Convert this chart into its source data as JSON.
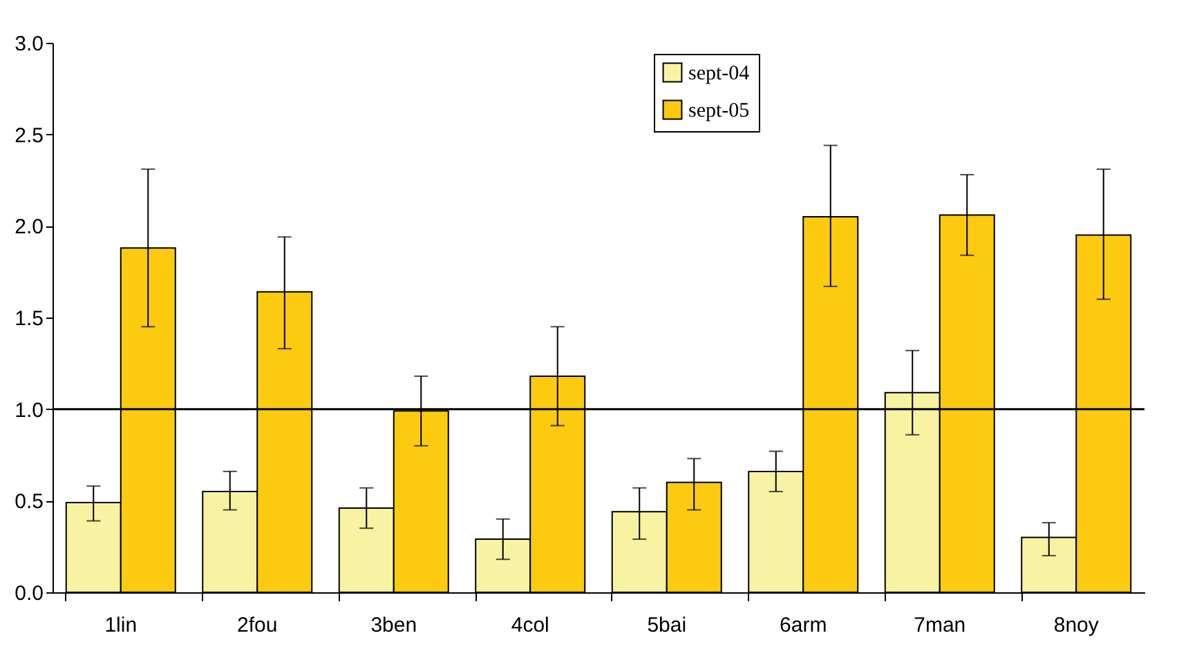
{
  "chart_data": {
    "type": "bar",
    "categories": [
      "1lin",
      "2fou",
      "3ben",
      "4col",
      "5bai",
      "6arm",
      "7man",
      "8noy"
    ],
    "series": [
      {
        "name": "sept-04",
        "color": "#f7f3a3",
        "values": [
          0.49,
          0.55,
          0.46,
          0.29,
          0.44,
          0.66,
          1.09,
          0.3
        ],
        "errors": [
          [
            0.39,
            0.58
          ],
          [
            0.45,
            0.66
          ],
          [
            0.35,
            0.57
          ],
          [
            0.18,
            0.4
          ],
          [
            0.29,
            0.57
          ],
          [
            0.55,
            0.77
          ],
          [
            0.86,
            1.32
          ],
          [
            0.2,
            0.38
          ]
        ]
      },
      {
        "name": "sept-05",
        "color": "#fccb0f",
        "values": [
          1.88,
          1.64,
          0.99,
          1.18,
          0.6,
          2.05,
          2.06,
          1.95
        ],
        "errors": [
          [
            1.45,
            2.31
          ],
          [
            1.33,
            1.94
          ],
          [
            0.8,
            1.18
          ],
          [
            0.91,
            1.45
          ],
          [
            0.45,
            0.73
          ],
          [
            1.67,
            2.44
          ],
          [
            1.84,
            2.28
          ],
          [
            1.6,
            2.31
          ]
        ]
      }
    ],
    "ylim": [
      0,
      3
    ],
    "yticks": [
      {
        "value": 0,
        "label": "0.0"
      },
      {
        "value": 0.5,
        "label": "0.5"
      },
      {
        "value": 1,
        "label": "1.0"
      },
      {
        "value": 1.5,
        "label": "1.5"
      },
      {
        "value": 2,
        "label": "2.0"
      },
      {
        "value": 2.5,
        "label": "2.5"
      },
      {
        "value": 3,
        "label": "3.0"
      }
    ],
    "ref_lines": [
      {
        "axis": "y",
        "value": 1,
        "color": "#000000"
      }
    ],
    "grid": false,
    "legend": "top"
  }
}
